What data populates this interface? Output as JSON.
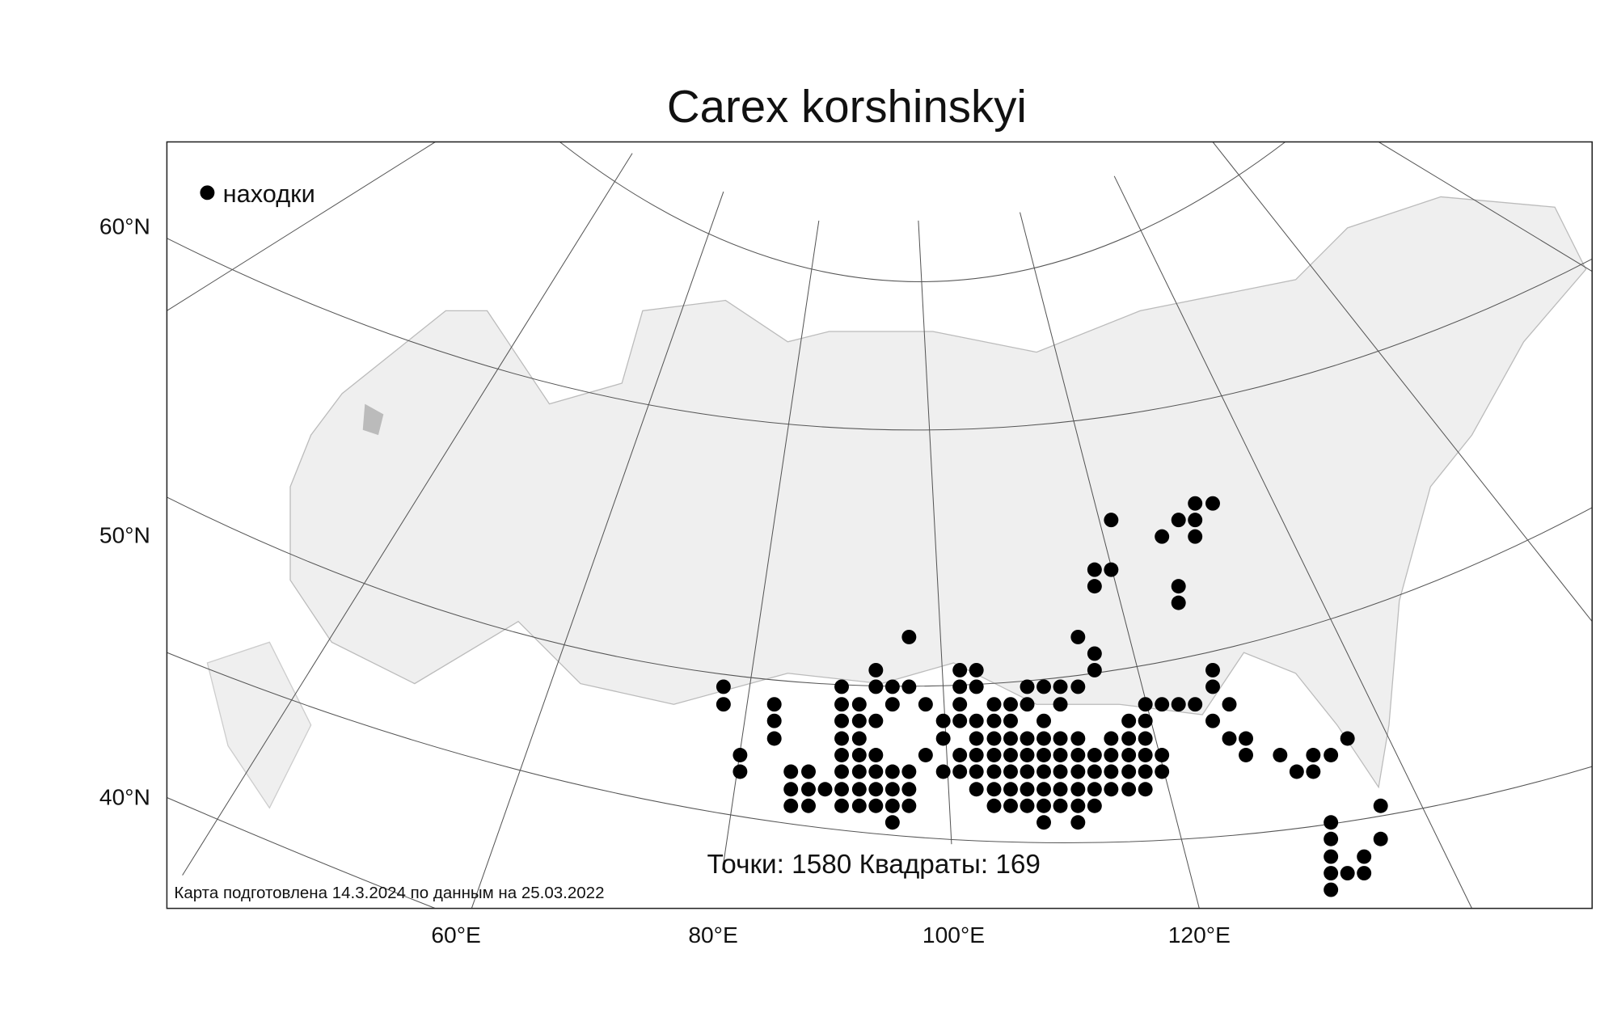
{
  "title": "Carex korshinskyi",
  "legend": {
    "label": "находки"
  },
  "lat_labels": [
    "60°N",
    "50°N",
    "40°N"
  ],
  "lon_labels": [
    "60°E",
    "80°E",
    "100°E",
    "120°E"
  ],
  "stats": "Точки: 1580 Квадраты: 169",
  "footer": "Карта подготовлена 14.3.2024 по данным на 25.03.2022"
}
